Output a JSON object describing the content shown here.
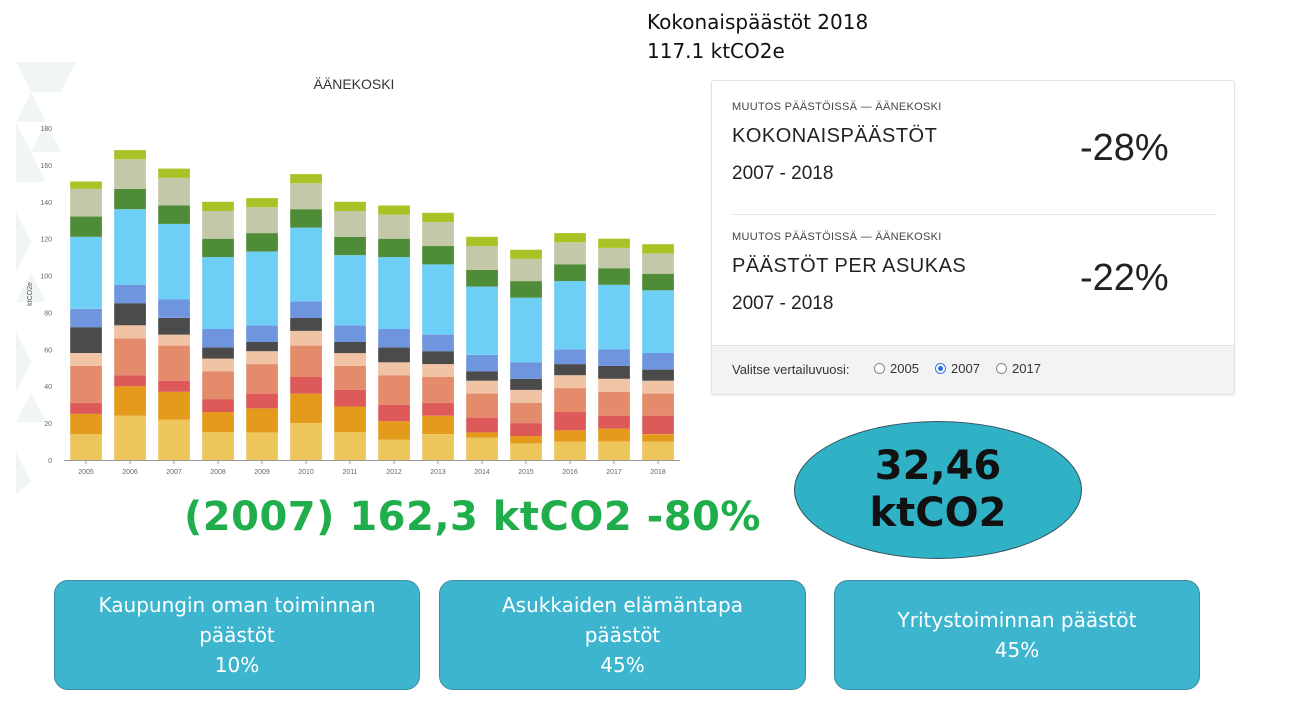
{
  "header": {
    "line1": "Kokonaispäästöt 2018",
    "line2": "117.1 ktCO2e"
  },
  "stats": [
    {
      "kicker": "MUUTOS PÄÄSTÖISSÄ — ÄÄNEKOSKI",
      "heading": "KOKONAISPÄÄSTÖT",
      "period": "2007 - 2018",
      "value": "-28%"
    },
    {
      "kicker": "MUUTOS PÄÄSTÖISSÄ — ÄÄNEKOSKI",
      "heading": "PÄÄSTÖT PER ASUKAS",
      "period": "2007 - 2018",
      "value": "-22%"
    }
  ],
  "comparison": {
    "label": "Valitse vertailuvuosi:",
    "options": [
      "2005",
      "2007",
      "2017"
    ],
    "selected": "2007"
  },
  "highlight_text": "(2007) 162,3 ktCO2 -80%",
  "ellipse": {
    "line1": "32,46",
    "line2": "ktCO2",
    "color": "#2fb1c6"
  },
  "boxes": [
    {
      "line1": "Kaupungin oman toiminnan",
      "line2": "päästöt",
      "line3": "10%"
    },
    {
      "line1": "Asukkaiden elämäntapa",
      "line2": "päästöt",
      "line3": "45%"
    },
    {
      "line1": "Yritystoiminnan päästöt",
      "line2": "45%"
    }
  ],
  "colors": {
    "highlight_green": "#1fae4b",
    "box_fill": "#3eb5cf",
    "selected_radio": "#1f72e6"
  },
  "chart_data": {
    "type": "bar",
    "stacked": true,
    "title": "ÄÄNEKOSKI",
    "xlabel": "",
    "ylabel": "ktCO2e",
    "ylim": [
      0,
      180
    ],
    "yticks": [
      0,
      20,
      40,
      60,
      80,
      100,
      120,
      140,
      160,
      180
    ],
    "grid": false,
    "categories": [
      "2005",
      "2006",
      "2007",
      "2008",
      "2009",
      "2010",
      "2011",
      "2012",
      "2013",
      "2014",
      "2015",
      "2016",
      "2017",
      "2018"
    ],
    "series": [
      {
        "color": "#ecc65a",
        "values": [
          14,
          24,
          22,
          15,
          15,
          20,
          15,
          11,
          14,
          12,
          9,
          10,
          10,
          10
        ]
      },
      {
        "color": "#e49b1b",
        "values": [
          11,
          16,
          15,
          11,
          13,
          16,
          14,
          10,
          10,
          3,
          4,
          6,
          7,
          4
        ]
      },
      {
        "color": "#de5a5a",
        "values": [
          6,
          6,
          6,
          7,
          8,
          9,
          9,
          9,
          7,
          8,
          7,
          10,
          7,
          10
        ]
      },
      {
        "color": "#e38b6a",
        "values": [
          20,
          20,
          19,
          15,
          16,
          17,
          13,
          16,
          14,
          13,
          11,
          13,
          13,
          12
        ]
      },
      {
        "color": "#efc3a3",
        "values": [
          7,
          7,
          6,
          7,
          7,
          8,
          7,
          7,
          7,
          7,
          7,
          7,
          7,
          7
        ]
      },
      {
        "color": "#4b4b4b",
        "values": [
          14,
          12,
          9,
          6,
          5,
          7,
          6,
          8,
          7,
          5,
          6,
          6,
          7,
          6
        ]
      },
      {
        "color": "#6f95de",
        "values": [
          10,
          10,
          10,
          10,
          9,
          9,
          9,
          10,
          9,
          9,
          9,
          8,
          9,
          9
        ]
      },
      {
        "color": "#6dcff6",
        "values": [
          39,
          41,
          41,
          39,
          40,
          40,
          38,
          39,
          38,
          37,
          35,
          37,
          35,
          34
        ]
      },
      {
        "color": "#4e8c37",
        "values": [
          11,
          11,
          10,
          10,
          10,
          10,
          10,
          10,
          10,
          9,
          9,
          9,
          9,
          9
        ]
      },
      {
        "color": "#c3c9a8",
        "values": [
          15,
          16,
          15,
          15,
          14,
          14,
          14,
          13,
          13,
          13,
          12,
          12,
          11,
          11
        ]
      },
      {
        "color": "#a9c327",
        "values": [
          4,
          5,
          5,
          5,
          5,
          5,
          5,
          5,
          5,
          5,
          5,
          5,
          5,
          5
        ]
      }
    ]
  }
}
